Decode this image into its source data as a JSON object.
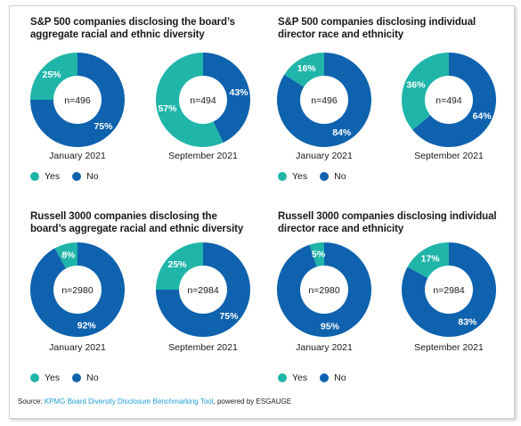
{
  "colors": {
    "yes": "#1fb5a8",
    "no": "#0e62ae",
    "hole": "#ffffff",
    "link": "#1e9dd8"
  },
  "legend": {
    "yes": "Yes",
    "no": "No"
  },
  "source": {
    "prefix": "Source: ",
    "link": "KPMG Board Diversity Disclosure Benchmarking Tool",
    "suffix": ", powered by ESGAUGE"
  },
  "panels": [
    {
      "title": "S&P 500 companies disclosing the board’s aggregate racial and ethnic diversity"
    },
    {
      "title": "S&P 500 companies disclosing individual director race and ethnicity"
    },
    {
      "title": "Russell 3000 companies disclosing the board’s aggregate racial and ethnic diversity"
    },
    {
      "title": "Russell 3000 companies disclosing individual director race and ethnicity"
    }
  ],
  "chart_data": [
    {
      "type": "pie",
      "caption": "January 2021",
      "center_label": "n=496",
      "series": [
        {
          "name": "Yes",
          "value": 25,
          "label": "25%"
        },
        {
          "name": "No",
          "value": 75,
          "label": "75%"
        }
      ]
    },
    {
      "type": "pie",
      "caption": "September 2021",
      "center_label": "n=494",
      "series": [
        {
          "name": "Yes",
          "value": 57,
          "label": "57%"
        },
        {
          "name": "No",
          "value": 43,
          "label": "43%"
        }
      ]
    },
    {
      "type": "pie",
      "caption": "January 2021",
      "center_label": "n=496",
      "series": [
        {
          "name": "Yes",
          "value": 16,
          "label": "16%"
        },
        {
          "name": "No",
          "value": 84,
          "label": "84%"
        }
      ]
    },
    {
      "type": "pie",
      "caption": "September 2021",
      "center_label": "n=494",
      "series": [
        {
          "name": "Yes",
          "value": 36,
          "label": "36%"
        },
        {
          "name": "No",
          "value": 64,
          "label": "64%"
        }
      ]
    },
    {
      "type": "pie",
      "caption": "January 2021",
      "center_label": "n=2980",
      "series": [
        {
          "name": "Yes",
          "value": 8,
          "label": "8%"
        },
        {
          "name": "No",
          "value": 92,
          "label": "92%"
        }
      ]
    },
    {
      "type": "pie",
      "caption": "September 2021",
      "center_label": "n=2984",
      "series": [
        {
          "name": "Yes",
          "value": 25,
          "label": "25%"
        },
        {
          "name": "No",
          "value": 75,
          "label": "75%"
        }
      ]
    },
    {
      "type": "pie",
      "caption": "January 2021",
      "center_label": "n=2980",
      "series": [
        {
          "name": "Yes",
          "value": 5,
          "label": "5%"
        },
        {
          "name": "No",
          "value": 95,
          "label": "95%"
        }
      ]
    },
    {
      "type": "pie",
      "caption": "September 2021",
      "center_label": "n=2984",
      "series": [
        {
          "name": "Yes",
          "value": 17,
          "label": "17%"
        },
        {
          "name": "No",
          "value": 83,
          "label": "83%"
        }
      ]
    }
  ]
}
